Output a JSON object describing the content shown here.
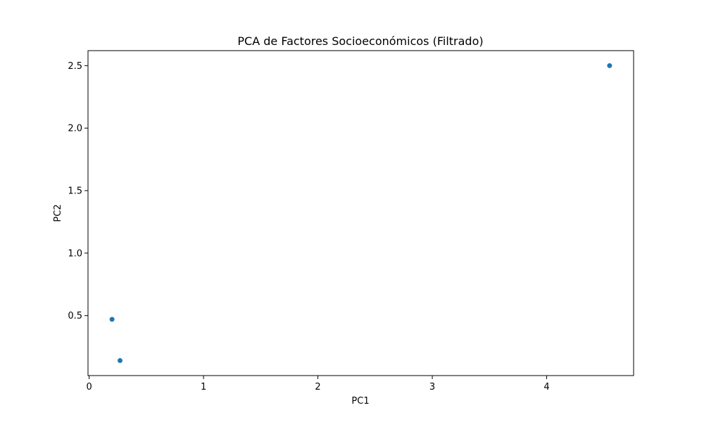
{
  "chart_data": {
    "type": "scatter",
    "title": "PCA de Factores Socioeconómicos (Filtrado)",
    "xlabel": "PC1",
    "ylabel": "PC2",
    "xlim": [
      -0.01,
      4.76
    ],
    "ylim": [
      0.02,
      2.62
    ],
    "xticks": [
      0,
      1,
      2,
      3,
      4
    ],
    "xtick_labels": [
      "0",
      "1",
      "2",
      "3",
      "4"
    ],
    "yticks": [
      0.5,
      1.0,
      1.5,
      2.0,
      2.5
    ],
    "ytick_labels": [
      "0.5",
      "1.0",
      "1.5",
      "2.0",
      "2.5"
    ],
    "grid": false,
    "marker_color": "#1f77b4",
    "points": [
      {
        "x": 0.2,
        "y": 0.47
      },
      {
        "x": 0.27,
        "y": 0.14
      },
      {
        "x": 4.55,
        "y": 2.5
      }
    ]
  }
}
